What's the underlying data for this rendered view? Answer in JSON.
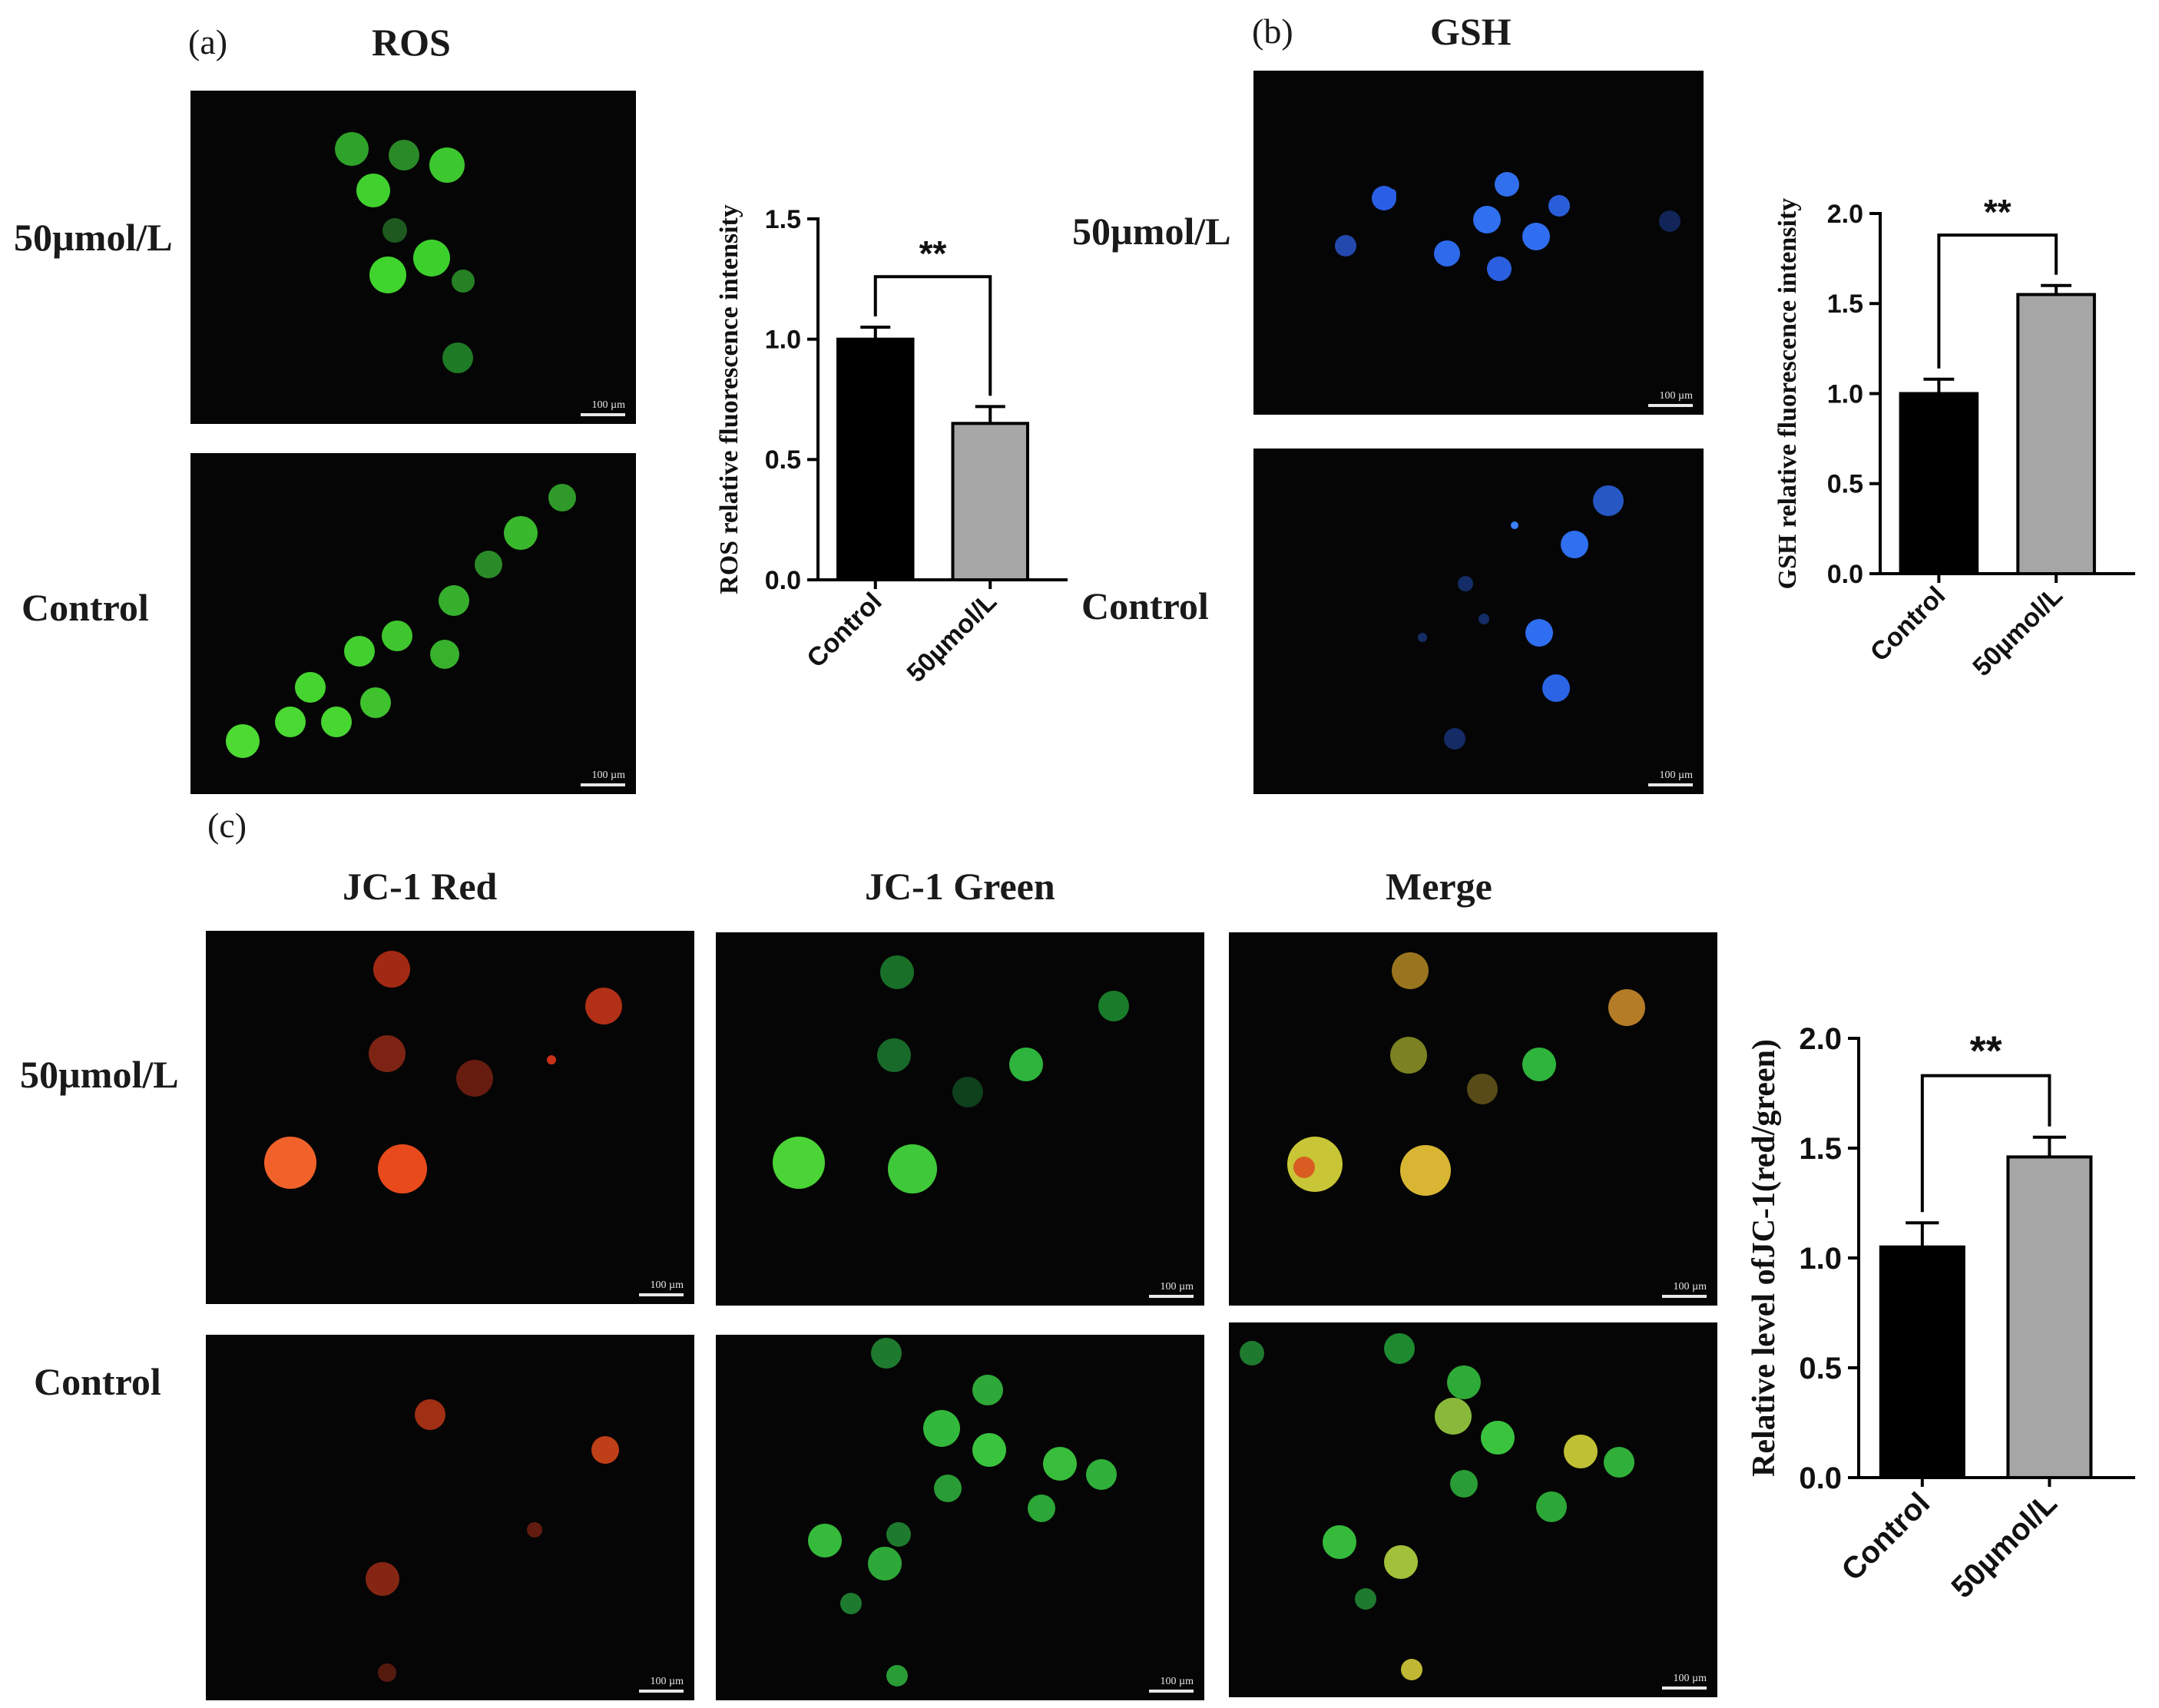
{
  "panels": {
    "a": {
      "label": "(a)",
      "title": "ROS",
      "rows": [
        "50µmol/L",
        "Control"
      ],
      "scale": "100 µm"
    },
    "b": {
      "label": "(b)",
      "title": "GSH",
      "rows": [
        "50µmol/L",
        "Control"
      ],
      "scale": "100 µm"
    },
    "c": {
      "label": "(c)",
      "columns": [
        "JC-1 Red",
        "JC-1 Green",
        "Merge"
      ],
      "rows": [
        "50µmol/L",
        "Control"
      ],
      "scale": "100 µm"
    }
  },
  "colors": {
    "control_bar": "#000000",
    "treated_bar": "#a6a6a6",
    "ros_cell": "#3fd42a",
    "gsh_cell": "#2f6ff0",
    "jc1_red": "#e8421a",
    "jc1_green": "#34c83a",
    "merge_yellow": "#d9c83a"
  },
  "chart_data": [
    {
      "type": "bar",
      "categories": [
        "Control",
        "50µmol/L"
      ],
      "values": [
        1.0,
        0.65
      ],
      "errors": [
        0.05,
        0.07
      ],
      "ylabel": "ROS relative fluorescence intensity",
      "ylim": [
        0,
        1.5
      ],
      "yticks": [
        "0.0",
        "0.5",
        "1.0",
        "1.5"
      ],
      "significance": "**"
    },
    {
      "type": "bar",
      "categories": [
        "Control",
        "50µmol/L"
      ],
      "values": [
        1.0,
        1.55
      ],
      "errors": [
        0.08,
        0.05
      ],
      "ylabel": "GSH relative fluorescence intensity",
      "ylim": [
        0,
        2.0
      ],
      "yticks": [
        "0.0",
        "0.5",
        "1.0",
        "1.5",
        "2.0"
      ],
      "significance": "**"
    },
    {
      "type": "bar",
      "categories": [
        "Control",
        "50µmol/L"
      ],
      "values": [
        1.05,
        1.46
      ],
      "errors": [
        0.11,
        0.09
      ],
      "ylabel": "Relative level ofJC-1(red/green)",
      "ylim": [
        0,
        2.0
      ],
      "yticks": [
        "0.0",
        "0.5",
        "1.0",
        "1.5",
        "2.0"
      ],
      "significance": "**"
    }
  ]
}
